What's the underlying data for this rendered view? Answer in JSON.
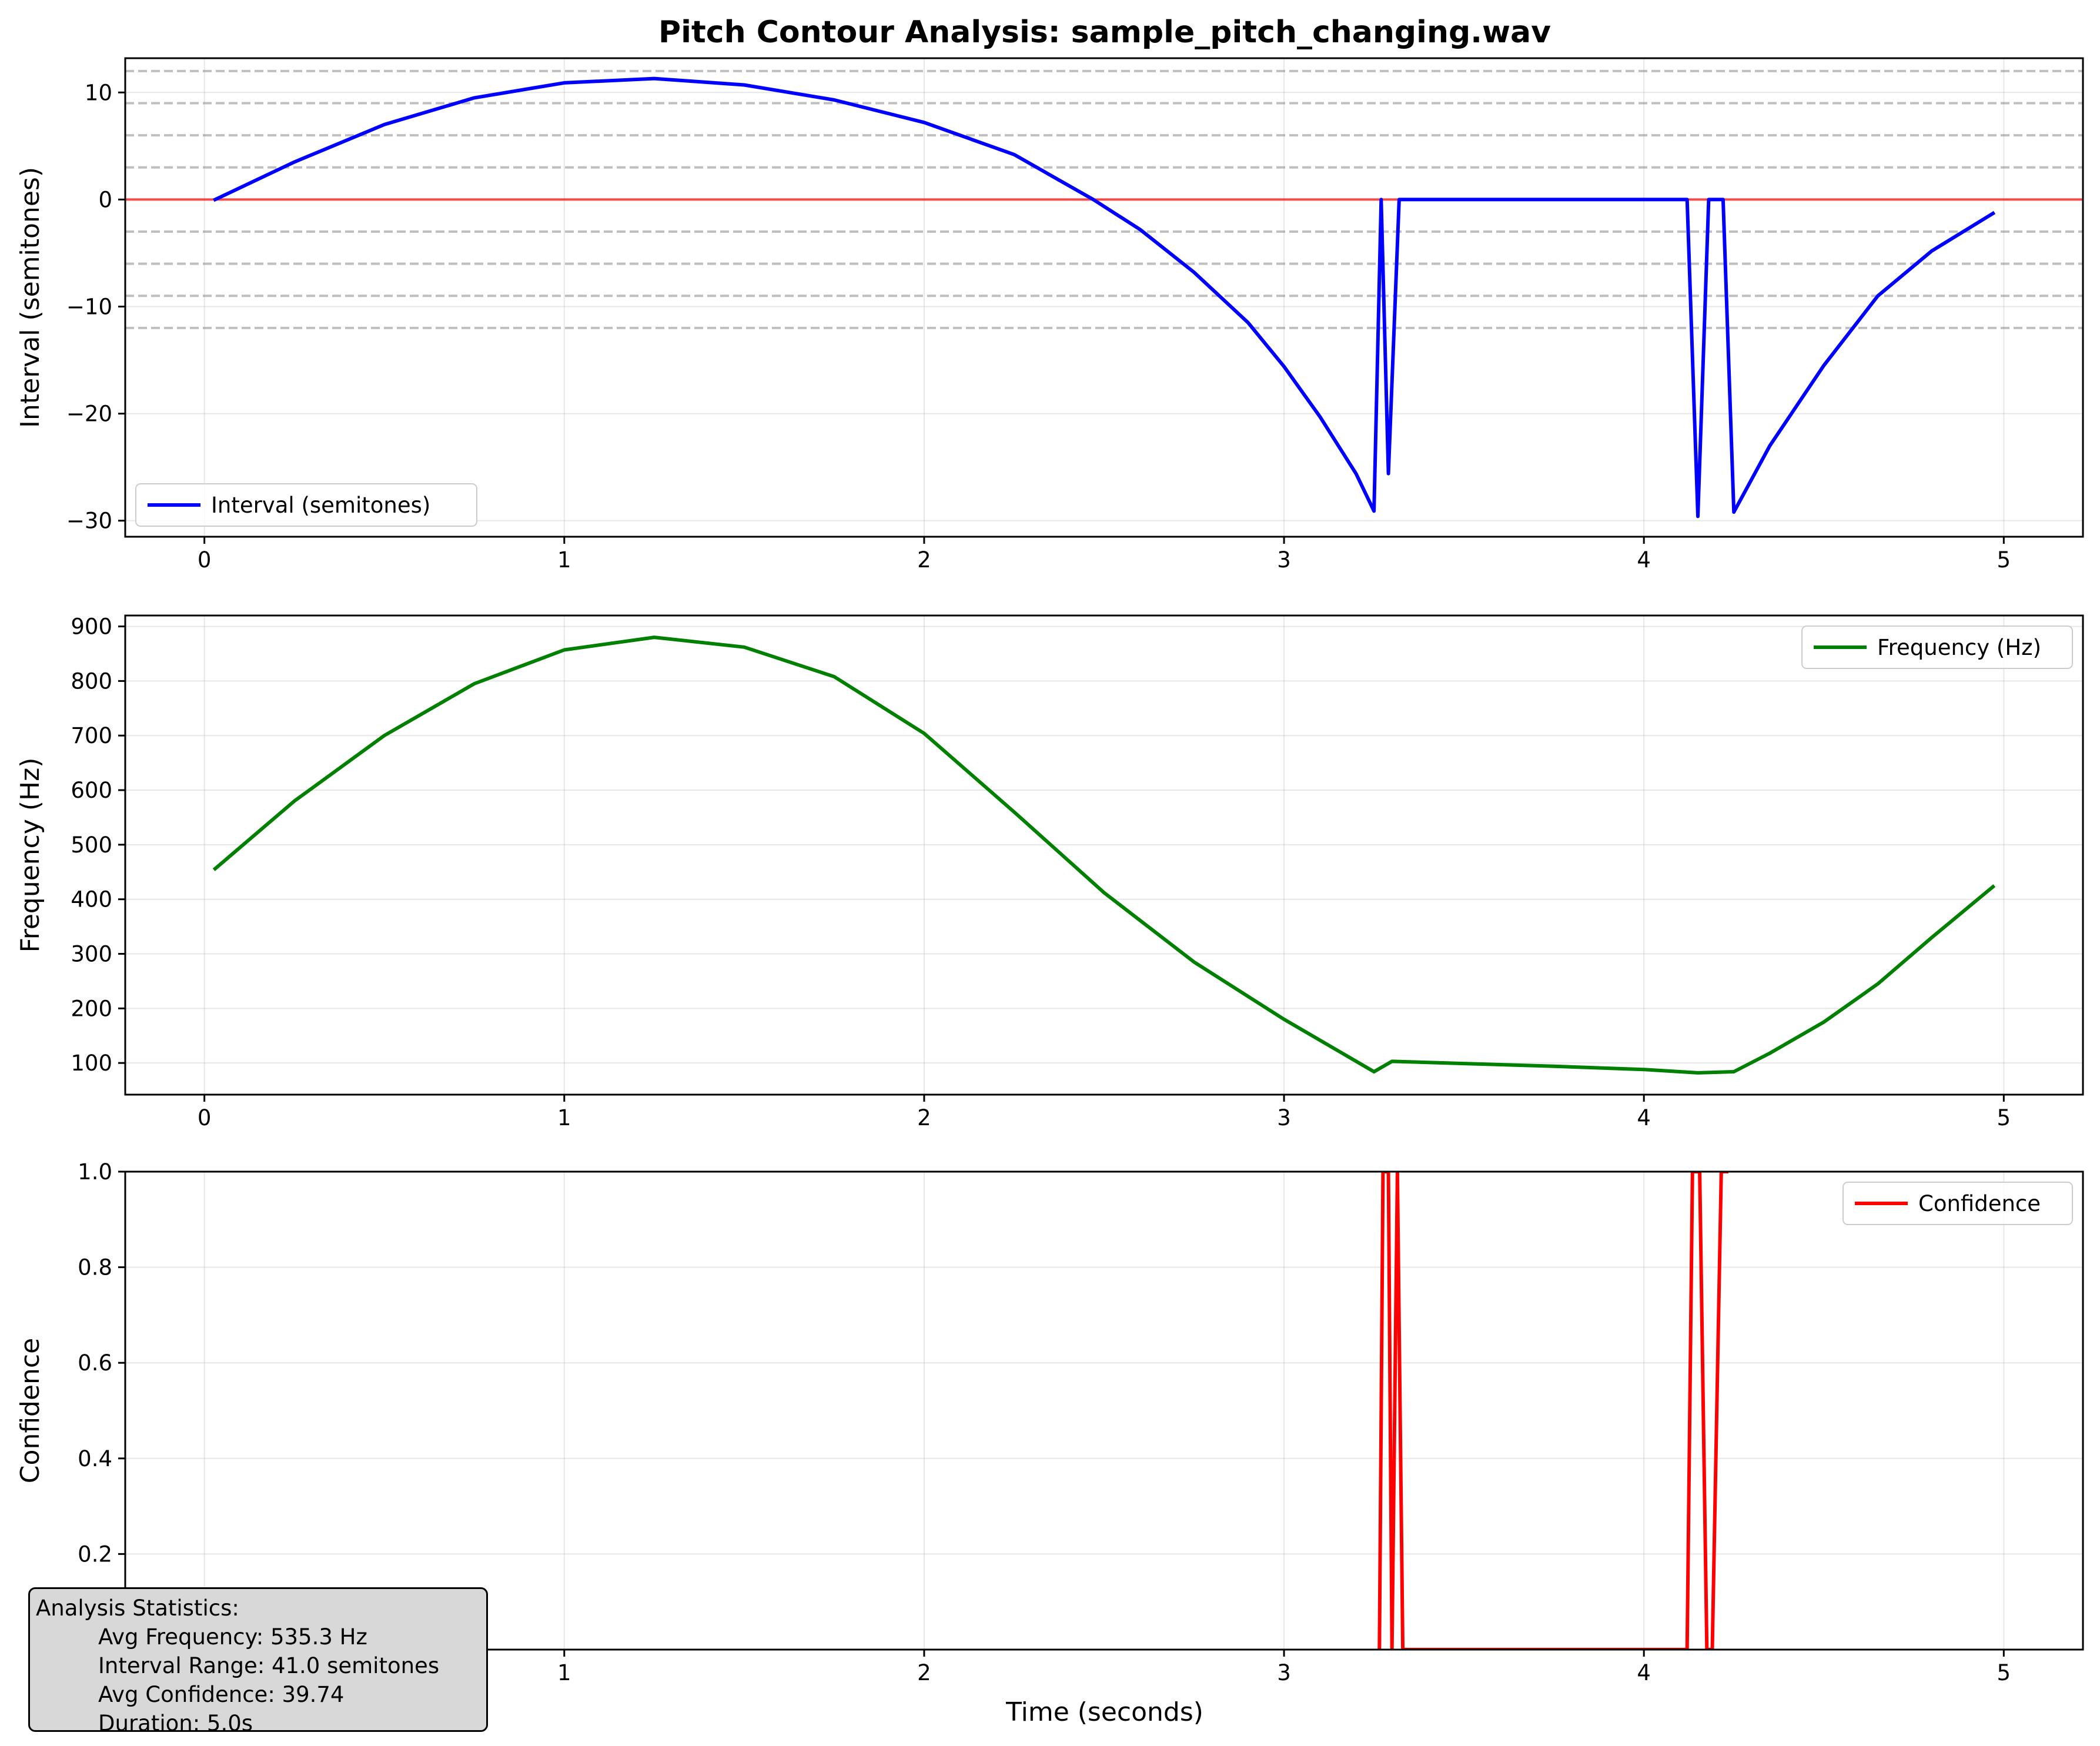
{
  "figure": {
    "title": "Pitch Contour Analysis: sample_pitch_changing.wav",
    "xlabel": "Time (seconds)"
  },
  "stats": {
    "heading": "Analysis Statistics:",
    "avg_frequency": "Avg Frequency: 535.3 Hz",
    "interval_range": "Interval Range: 41.0 semitones",
    "avg_confidence": "Avg Confidence: 39.74",
    "duration": "Duration: 5.0s"
  },
  "chart_data": [
    {
      "type": "line",
      "ylabel": "Interval (semitones)",
      "xlim": [
        -0.22,
        5.22
      ],
      "ylim": [
        -31.5,
        13.2
      ],
      "xticks": [
        0,
        1,
        2,
        3,
        4,
        5
      ],
      "yticks": [
        -30,
        -20,
        -10,
        0,
        10
      ],
      "grid": true,
      "legend": "lower-left",
      "reference_lines": {
        "solid_red": [
          0
        ],
        "dashed_gray": [
          12,
          9,
          6,
          3,
          -3,
          -6,
          -9,
          -12
        ]
      },
      "series": [
        {
          "name": "Interval (semitones)",
          "color": "#0000ff",
          "x": [
            0.03,
            0.25,
            0.5,
            0.75,
            1.0,
            1.25,
            1.5,
            1.75,
            2.0,
            2.25,
            2.47,
            2.6,
            2.75,
            2.9,
            3.0,
            3.1,
            3.2,
            3.25,
            3.27,
            3.29,
            3.32,
            3.5,
            4.0,
            4.12,
            4.15,
            4.18,
            4.22,
            4.25,
            4.35,
            4.5,
            4.65,
            4.8,
            4.97
          ],
          "y": [
            0.0,
            3.5,
            7.0,
            9.5,
            10.9,
            11.3,
            10.7,
            9.3,
            7.2,
            4.2,
            0.0,
            -2.8,
            -6.8,
            -11.5,
            -15.6,
            -20.3,
            -25.6,
            -29.1,
            0.0,
            -25.6,
            0.0,
            0.0,
            0.0,
            0.0,
            -29.6,
            0.0,
            0.0,
            -29.2,
            -23.0,
            -15.5,
            -9.0,
            -4.8,
            -1.3
          ]
        }
      ]
    },
    {
      "type": "line",
      "ylabel": "Frequency (Hz)",
      "xlim": [
        -0.22,
        5.22
      ],
      "ylim": [
        42,
        920
      ],
      "xticks": [
        0,
        1,
        2,
        3,
        4,
        5
      ],
      "yticks": [
        100,
        200,
        300,
        400,
        500,
        600,
        700,
        800,
        900
      ],
      "grid": true,
      "legend": "upper-right",
      "series": [
        {
          "name": "Frequency (Hz)",
          "color": "#008000",
          "x": [
            0.03,
            0.25,
            0.5,
            0.75,
            1.0,
            1.25,
            1.5,
            1.75,
            2.0,
            2.25,
            2.5,
            2.75,
            3.0,
            3.25,
            3.3,
            3.5,
            3.75,
            4.0,
            4.15,
            4.25,
            4.35,
            4.5,
            4.65,
            4.8,
            4.97
          ],
          "y": [
            456,
            580,
            700,
            795,
            857,
            880,
            862,
            808,
            704,
            560,
            412,
            285,
            180,
            84,
            103,
            99,
            94,
            88,
            82,
            84,
            118,
            175,
            245,
            330,
            423
          ]
        }
      ]
    },
    {
      "type": "line",
      "ylabel": "Confidence",
      "xlim": [
        -0.22,
        5.22
      ],
      "ylim": [
        0,
        1.0
      ],
      "xticks": [
        0,
        1,
        2,
        3,
        4,
        5
      ],
      "yticks": [
        0.0,
        0.2,
        0.4,
        0.6,
        0.8,
        1.0
      ],
      "grid": true,
      "legend": "upper-right",
      "series": [
        {
          "name": "Confidence",
          "color": "#ff0000",
          "x": [
            3.265,
            3.275,
            3.29,
            3.3,
            3.315,
            3.33,
            4.12,
            4.135,
            4.155,
            4.175,
            4.19,
            4.215,
            4.23
          ],
          "y": [
            0.0,
            1.0,
            1.0,
            0.0,
            1.0,
            0.0,
            0.0,
            1.0,
            1.0,
            0.0,
            0.0,
            1.0,
            1.0
          ]
        }
      ]
    }
  ]
}
